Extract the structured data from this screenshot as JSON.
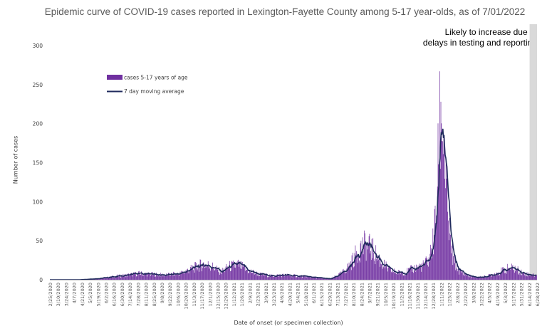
{
  "chart_data": {
    "type": "bar",
    "title": "Epidemic curve of COVID-19 cases reported in Lexington-Fayette County among 5-17 year-olds, as of 7/01/2022",
    "ylabel": "Number of cases",
    "xlabel": "Date of onset (or specimen collection)",
    "ylim": [
      0,
      300
    ],
    "y_ticks": [
      0,
      50,
      100,
      150,
      200,
      250,
      300
    ],
    "grid": false,
    "legend_position": "upper-left",
    "x_start": "2/25/2020",
    "x_end": "6/27/2022",
    "x_tick_labels": [
      "2/25/2020",
      "3/10/2020",
      "3/24/2020",
      "4/7/2020",
      "4/21/2020",
      "5/5/2020",
      "5/19/2020",
      "6/2/2020",
      "6/16/2020",
      "6/30/2020",
      "7/14/2020",
      "7/28/2020",
      "8/11/2020",
      "8/25/2020",
      "9/8/2020",
      "9/22/2020",
      "10/6/2020",
      "10/20/2020",
      "11/3/2020",
      "11/17/2020",
      "12/1/2020",
      "12/15/2020",
      "12/29/2020",
      "1/12/2021",
      "1/26/2021",
      "2/9/2021",
      "2/23/2021",
      "3/9/2021",
      "3/23/2021",
      "4/6/2021",
      "4/20/2021",
      "5/4/2021",
      "5/18/2021",
      "6/1/2021",
      "6/15/2021",
      "6/29/2021",
      "7/13/2021",
      "7/27/2021",
      "8/10/2021",
      "8/24/2021",
      "9/7/2021",
      "9/21/2021",
      "10/5/2021",
      "10/19/2021",
      "11/2/2021",
      "11/16/2021",
      "11/30/2021",
      "12/14/2021",
      "12/28/2021",
      "1/11/2022",
      "1/25/2022",
      "2/8/2022",
      "2/22/2022",
      "3/8/2022",
      "3/22/2022",
      "4/5/2022",
      "4/19/2022",
      "5/3/2022",
      "5/17/2022",
      "5/31/2022",
      "6/14/2022",
      "6/28/2022"
    ],
    "series": [
      {
        "name": "cases 5-17 years of age",
        "type": "bar",
        "color": "#7030a0",
        "keypoints": [
          [
            "3/1/2020",
            0
          ],
          [
            "4/15/2020",
            0
          ],
          [
            "5/25/2020",
            2
          ],
          [
            "6/15/2020",
            4
          ],
          [
            "7/10/2020",
            6
          ],
          [
            "7/30/2020",
            8
          ],
          [
            "8/20/2020",
            7
          ],
          [
            "9/15/2020",
            6
          ],
          [
            "10/10/2020",
            8
          ],
          [
            "10/30/2020",
            14
          ],
          [
            "11/20/2020",
            20
          ],
          [
            "12/5/2020",
            17
          ],
          [
            "12/20/2020",
            10
          ],
          [
            "1/5/2021",
            17
          ],
          [
            "1/20/2021",
            19
          ],
          [
            "2/5/2021",
            12
          ],
          [
            "2/25/2021",
            7
          ],
          [
            "3/20/2021",
            5
          ],
          [
            "4/10/2021",
            6
          ],
          [
            "4/30/2021",
            5
          ],
          [
            "5/20/2021",
            4
          ],
          [
            "6/15/2021",
            2
          ],
          [
            "6/30/2021",
            1
          ],
          [
            "7/20/2021",
            8
          ],
          [
            "8/5/2021",
            20
          ],
          [
            "8/20/2021",
            40
          ],
          [
            "8/30/2021",
            44
          ],
          [
            "9/10/2021",
            40
          ],
          [
            "9/25/2021",
            25
          ],
          [
            "10/10/2021",
            13
          ],
          [
            "10/25/2021",
            9
          ],
          [
            "11/10/2021",
            10
          ],
          [
            "11/25/2021",
            15
          ],
          [
            "12/10/2021",
            18
          ],
          [
            "12/20/2021",
            25
          ],
          [
            "12/28/2021",
            50
          ],
          [
            "1/3/2022",
            100
          ],
          [
            "1/7/2022",
            180
          ],
          [
            "1/10/2022",
            220
          ],
          [
            "1/13/2022",
            205
          ],
          [
            "1/17/2022",
            150
          ],
          [
            "1/21/2022",
            90
          ],
          [
            "1/26/2022",
            50
          ],
          [
            "2/1/2022",
            25
          ],
          [
            "2/10/2022",
            12
          ],
          [
            "2/25/2022",
            6
          ],
          [
            "3/10/2022",
            3
          ],
          [
            "3/30/2022",
            4
          ],
          [
            "4/15/2022",
            8
          ],
          [
            "4/30/2022",
            12
          ],
          [
            "5/10/2022",
            15
          ],
          [
            "5/20/2022",
            14
          ],
          [
            "6/5/2022",
            8
          ],
          [
            "6/27/2022",
            5
          ]
        ]
      },
      {
        "name": "7 day moving average",
        "type": "line",
        "color": "#1f2a5c"
      }
    ],
    "legend": [
      "cases 5-17 years of age",
      "7 day moving average"
    ],
    "peak_value": 267,
    "shaded_region": {
      "start": "6/15/2022",
      "end": "6/28/2022",
      "color": "#d9d9d9"
    },
    "annotation": "Likely to increase due to delays in testing and reporting"
  }
}
